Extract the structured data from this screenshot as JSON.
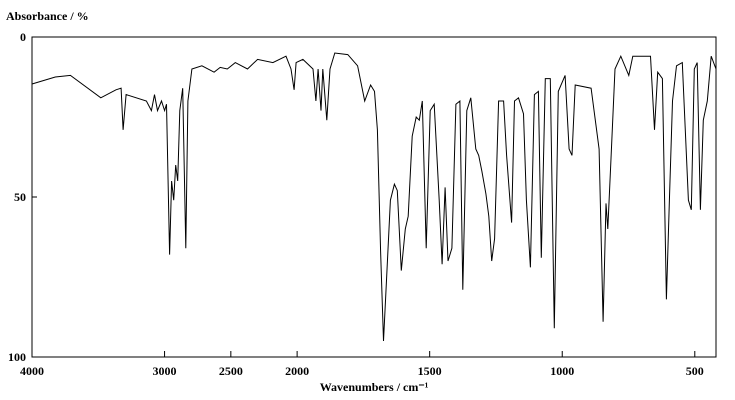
{
  "chart_data": {
    "type": "line",
    "y_label": "Absorbance / %",
    "x_label": "Wavenumbers / cm⁻¹",
    "xlim": [
      4000,
      420
    ],
    "x_scale_break": 2000,
    "x_scale_ratio": 2,
    "xticks": [
      4000,
      3000,
      2500,
      2000,
      1500,
      1000,
      500
    ],
    "ylim": [
      0,
      100
    ],
    "yticks": [
      0,
      50,
      100
    ],
    "y_inverted": true,
    "color": "#000000",
    "x": [
      4000,
      3824,
      3710,
      3481,
      3366,
      3328,
      3313,
      3290,
      3137,
      3099,
      3076,
      3053,
      3023,
      3000,
      2985,
      2962,
      2947,
      2931,
      2916,
      2901,
      2885,
      2863,
      2840,
      2824,
      2794,
      2718,
      2626,
      2580,
      2527,
      2466,
      2374,
      2298,
      2183,
      2084,
      2046,
      2023,
      2008,
      1978,
      1940,
      1929,
      1921,
      1910,
      1903,
      1888,
      1876,
      1858,
      1809,
      1772,
      1745,
      1723,
      1708,
      1697,
      1685,
      1674,
      1663,
      1648,
      1633,
      1622,
      1607,
      1592,
      1581,
      1566,
      1551,
      1539,
      1528,
      1513,
      1498,
      1483,
      1464,
      1453,
      1442,
      1431,
      1416,
      1401,
      1386,
      1375,
      1360,
      1345,
      1326,
      1315,
      1303,
      1288,
      1277,
      1266,
      1255,
      1240,
      1221,
      1210,
      1191,
      1180,
      1165,
      1146,
      1135,
      1120,
      1105,
      1090,
      1079,
      1064,
      1045,
      1030,
      1015,
      989,
      974,
      963,
      951,
      891,
      861,
      846,
      835,
      828,
      816,
      801,
      779,
      749,
      734,
      667,
      652,
      640,
      622,
      607,
      596,
      584,
      569,
      547,
      524,
      513,
      502,
      491,
      479,
      468,
      453,
      438,
      420
    ],
    "y": [
      14.7,
      12.5,
      12,
      19,
      16.5,
      16,
      29,
      18,
      20,
      23,
      18,
      23,
      20,
      23,
      21,
      68,
      45,
      51,
      40,
      45,
      23,
      16,
      66,
      20,
      10,
      9,
      11,
      9.5,
      10,
      8,
      10,
      7,
      8,
      6,
      10,
      16.5,
      8,
      7,
      10,
      20,
      10,
      23,
      10,
      26,
      10,
      5,
      5.5,
      9,
      20,
      15,
      17,
      29,
      67,
      95,
      76,
      51,
      46,
      48,
      73,
      60,
      56,
      31,
      25,
      26,
      20,
      66,
      23,
      21,
      51,
      71,
      47,
      70,
      66,
      21,
      20,
      79,
      23,
      19,
      35,
      37,
      42,
      49,
      56,
      70,
      63,
      20,
      20,
      37,
      58,
      20,
      19,
      24,
      51,
      72,
      18,
      17,
      69,
      13,
      13,
      91,
      17,
      12,
      35,
      37,
      15,
      16,
      35,
      89,
      52,
      60,
      38,
      10,
      6,
      12,
      6,
      6,
      29,
      11,
      13,
      82,
      52,
      20,
      9,
      8,
      51,
      54,
      10,
      8,
      54,
      26,
      20,
      6,
      10
    ]
  }
}
